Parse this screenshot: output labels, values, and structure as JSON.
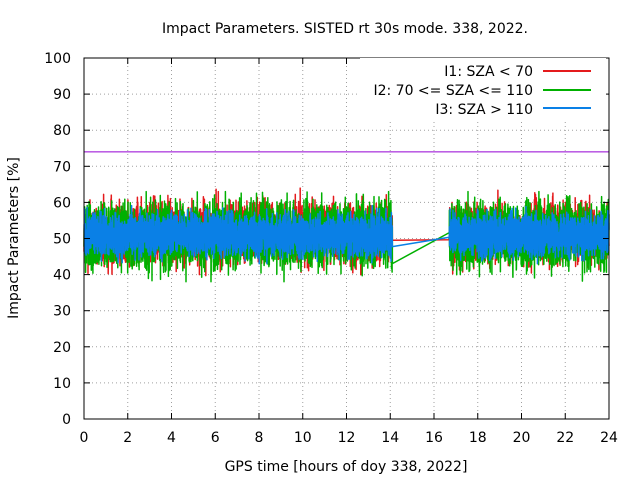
{
  "chart_data": {
    "type": "line",
    "title": "Impact Parameters. SISTED rt 30s mode. 338, 2022.",
    "xlabel": "GPS time [hours of doy 338, 2022]",
    "ylabel": "Impact Parameters [%]",
    "xlim": [
      0,
      24
    ],
    "ylim": [
      0,
      100
    ],
    "x_ticks": [
      "0",
      "2",
      "4",
      "6",
      "8",
      "10",
      "12",
      "14",
      "16",
      "18",
      "20",
      "22",
      "24"
    ],
    "y_ticks": [
      "0",
      "10",
      "20",
      "30",
      "40",
      "50",
      "60",
      "70",
      "80",
      "90",
      "100"
    ],
    "grid": true,
    "legend_position": "top-right",
    "threshold": {
      "value": 74,
      "color": "#9400d3"
    },
    "data_gap_hours": [
      14.1,
      16.7
    ],
    "series": [
      {
        "name": "I1: SZA < 70",
        "color": "#e41a1c",
        "mean": 51.5,
        "range": [
          39,
          65
        ]
      },
      {
        "name": "I2: 70 <= SZA <= 110",
        "color": "#00b000",
        "mean": 51,
        "range": [
          38,
          63
        ]
      },
      {
        "name": "I3: SZA > 110",
        "color": "#0a80e6",
        "mean": 51,
        "range": [
          43,
          61
        ]
      }
    ]
  }
}
